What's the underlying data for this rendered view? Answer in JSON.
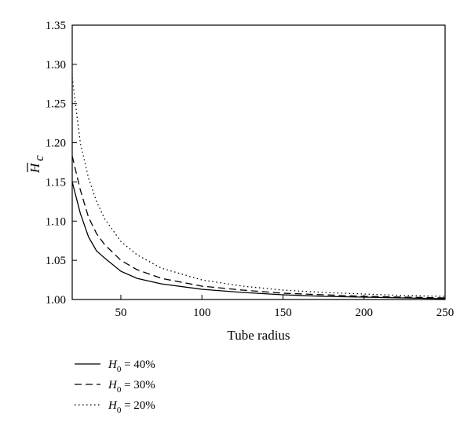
{
  "chart_data": {
    "type": "line",
    "xlabel": "Tube radius",
    "ylabel": {
      "main": "H",
      "sub": "c",
      "overline": true
    },
    "xlim": [
      20,
      250
    ],
    "ylim": [
      1.0,
      1.35
    ],
    "xticks": [
      50,
      100,
      150,
      200,
      250
    ],
    "yticks": [
      1.0,
      1.05,
      1.1,
      1.15,
      1.2,
      1.25,
      1.3,
      1.35
    ],
    "ytick_labels": [
      "1.00",
      "1.05",
      "1.10",
      "1.15",
      "1.20",
      "1.25",
      "1.30",
      "1.35"
    ],
    "grid": false,
    "legend_position": "below-left",
    "series": [
      {
        "name": "H0 = 40%",
        "legend": {
          "main": "H",
          "sub": "0",
          "rest": " = 40%"
        },
        "dash": "solid",
        "x": [
          20,
          25,
          30,
          35,
          40,
          50,
          60,
          75,
          100,
          125,
          150,
          175,
          200,
          225,
          250
        ],
        "y": [
          1.15,
          1.11,
          1.08,
          1.062,
          1.053,
          1.036,
          1.027,
          1.02,
          1.013,
          1.009,
          1.006,
          1.004,
          1.003,
          1.002,
          1.001
        ]
      },
      {
        "name": "H0 = 30%",
        "legend": {
          "main": "H",
          "sub": "0",
          "rest": " = 30%"
        },
        "dash": "dashed",
        "x": [
          20,
          25,
          30,
          35,
          40,
          50,
          60,
          75,
          100,
          125,
          150,
          175,
          200,
          225,
          250
        ],
        "y": [
          1.183,
          1.14,
          1.105,
          1.084,
          1.07,
          1.05,
          1.038,
          1.027,
          1.017,
          1.012,
          1.008,
          1.006,
          1.004,
          1.003,
          1.002
        ]
      },
      {
        "name": "H0 = 20%",
        "legend": {
          "main": "H",
          "sub": "0",
          "rest": " = 20%"
        },
        "dash": "dotted",
        "x": [
          20,
          25,
          30,
          35,
          40,
          50,
          60,
          75,
          100,
          125,
          150,
          175,
          200,
          225,
          250
        ],
        "y": [
          1.283,
          1.2,
          1.155,
          1.125,
          1.103,
          1.074,
          1.057,
          1.04,
          1.025,
          1.017,
          1.012,
          1.009,
          1.007,
          1.005,
          1.004
        ]
      }
    ]
  }
}
